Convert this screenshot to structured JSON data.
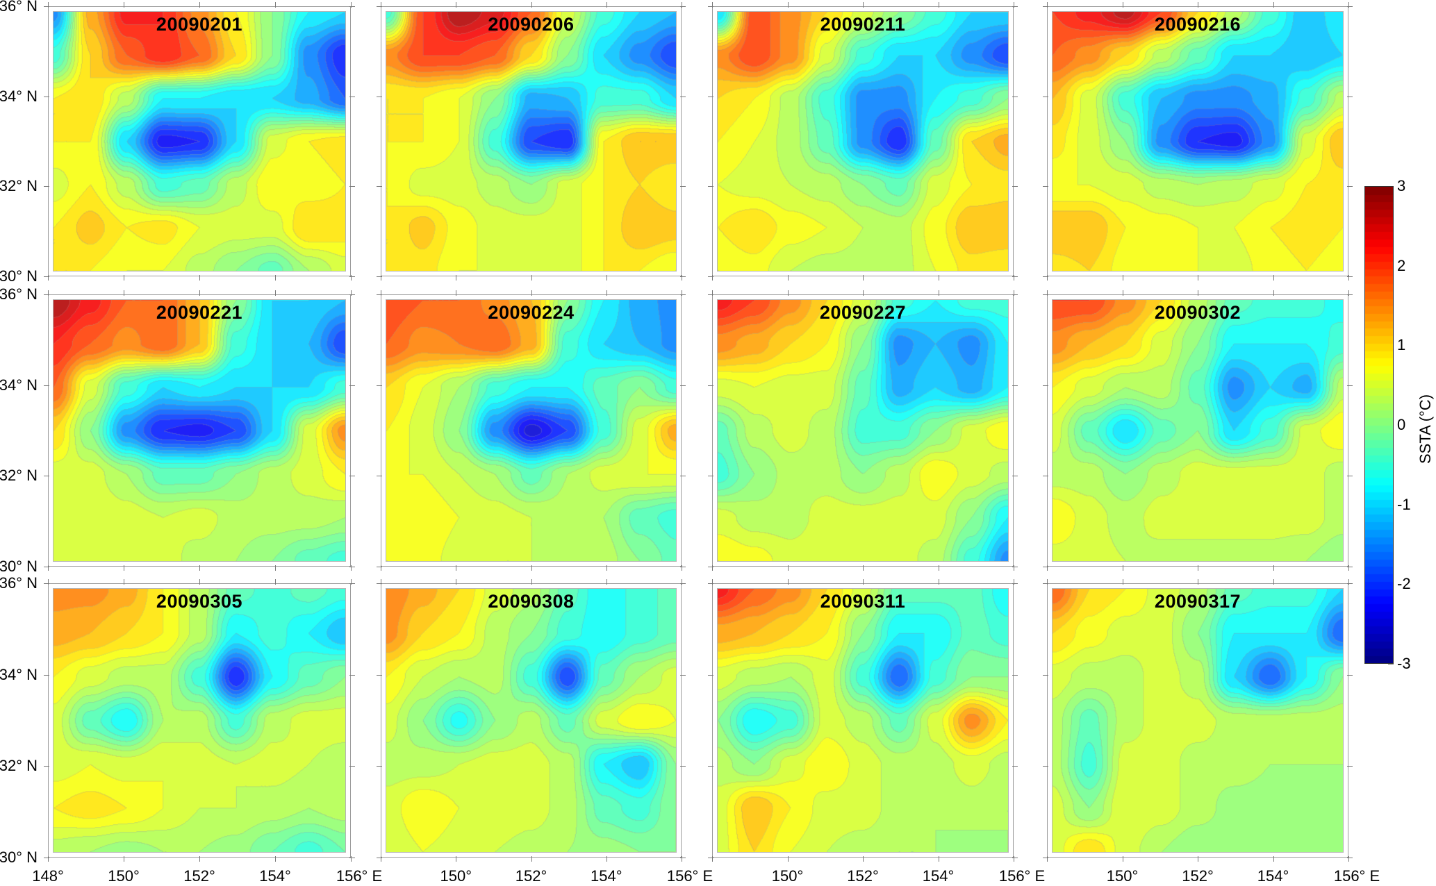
{
  "chart_data": {
    "type": "heatmap",
    "variable": "SSTA",
    "lon": [
      148,
      149,
      150,
      151,
      152,
      153,
      154,
      155,
      156
    ],
    "lat": [
      36,
      35,
      34,
      33,
      32,
      31,
      30
    ],
    "y_tick_labels": [
      "36° N",
      "34° N",
      "32° N",
      "30° N"
    ],
    "x_tick_labels_first_column": [
      "148°",
      "150°",
      "152°",
      "154°",
      "156° E"
    ],
    "x_tick_labels_other_columns": [
      "150°",
      "152°",
      "154°",
      "156° E"
    ],
    "colorbar": {
      "label": "SSTA (°C)",
      "range": [
        -3,
        3
      ],
      "ticks": [
        "3",
        "2",
        "1",
        "0",
        "-1",
        "-2",
        "-3"
      ],
      "colormap": "jet"
    },
    "panels": [
      {
        "title": "20090201",
        "values": [
          [
            -1.5,
            1.3,
            2.3,
            2.2,
            1.5,
            0.8,
            0,
            -0.8,
            -1
          ],
          [
            -0.5,
            1.0,
            1.8,
            2.2,
            1.8,
            1.0,
            0,
            -1.5,
            -2.2
          ],
          [
            0.8,
            1.0,
            0.3,
            -0.8,
            -0.8,
            -1,
            -1,
            -1.3,
            -1.8
          ],
          [
            0.8,
            0.8,
            -1,
            -2.3,
            -2.2,
            -1,
            0.5,
            0.8,
            0.9
          ],
          [
            0.5,
            0.8,
            0.3,
            -0.5,
            -0.3,
            0.3,
            0.8,
            0.7,
            0.8
          ],
          [
            0.8,
            1.1,
            0.8,
            0.9,
            0.6,
            0.5,
            0.5,
            1.0,
            0.9
          ],
          [
            0.8,
            0.8,
            0.6,
            0.6,
            0.3,
            0.0,
            -0.3,
            0.2,
            0.5
          ]
        ]
      },
      {
        "title": "20090206",
        "values": [
          [
            -0.5,
            2.0,
            2.8,
            2.5,
            1.8,
            0.5,
            -0.5,
            -1,
            -1.2
          ],
          [
            1.5,
            2.0,
            2.0,
            1.8,
            1.0,
            0,
            -1,
            -1.5,
            -2
          ],
          [
            0.8,
            0.8,
            0.6,
            0,
            -1.3,
            -1.2,
            -0.5,
            -0.5,
            -1
          ],
          [
            0.8,
            0.8,
            0.6,
            -0.5,
            -2.0,
            -2.2,
            0.8,
            1.2,
            1.2
          ],
          [
            0.8,
            0.5,
            0.5,
            0.3,
            0,
            0.5,
            0.8,
            1.0,
            0.8
          ],
          [
            0.8,
            1.1,
            0.7,
            0.5,
            0.5,
            0.5,
            0.8,
            1.2,
            1.1
          ],
          [
            0.8,
            0.9,
            0.6,
            0.6,
            0.5,
            0.5,
            0.8,
            0.8,
            0.6
          ]
        ]
      },
      {
        "title": "20090211",
        "values": [
          [
            -1,
            2.0,
            1.5,
            1.0,
            0.5,
            0,
            -0.5,
            -1,
            -1
          ],
          [
            1.5,
            2.0,
            1.5,
            0.5,
            -0.5,
            -1,
            -1,
            -1.5,
            -2
          ],
          [
            1.0,
            0.8,
            0.3,
            -0.5,
            -1.5,
            -1.5,
            -0.8,
            -0.5,
            0
          ],
          [
            0.8,
            0.6,
            0.3,
            -0.3,
            -1.5,
            -2.2,
            -0.3,
            1.0,
            1.3
          ],
          [
            0.6,
            0.5,
            0.4,
            0.3,
            0,
            -0.3,
            0.5,
            0.8,
            0.9
          ],
          [
            0.8,
            1.0,
            0.7,
            0.6,
            0.4,
            0.3,
            0.7,
            1.2,
            1.2
          ],
          [
            0.6,
            0.7,
            0.4,
            0.3,
            0.3,
            0.3,
            0.6,
            0.9,
            0.8
          ]
        ]
      },
      {
        "title": "20090216",
        "values": [
          [
            2.0,
            2.3,
            2.7,
            2.0,
            1.0,
            0.3,
            -0.5,
            -1.2,
            -0.8
          ],
          [
            1.8,
            1.5,
            1.0,
            0.3,
            -0.3,
            -1,
            -1,
            -1.2,
            -1.0
          ],
          [
            1.2,
            0.5,
            -0.5,
            -1.2,
            -1.5,
            -1.5,
            -1.3,
            -0.5,
            0.3
          ],
          [
            0.9,
            0.5,
            0,
            -1.5,
            -2.2,
            -2.3,
            -1.5,
            0.5,
            1.2
          ],
          [
            0.6,
            0.6,
            0.5,
            0.3,
            0.2,
            0.3,
            0.5,
            0.8,
            0.9
          ],
          [
            1.2,
            1.2,
            0.8,
            0.7,
            0.6,
            0.6,
            0.8,
            0.9,
            0.8
          ],
          [
            0.9,
            1.0,
            0.7,
            0.8,
            0.6,
            0.5,
            0.7,
            0.8,
            0.7
          ]
        ]
      },
      {
        "title": "20090221",
        "values": [
          [
            2.8,
            2.3,
            1.8,
            1.8,
            1.2,
            0,
            -1,
            -1,
            -1.2
          ],
          [
            2.2,
            1.8,
            1.5,
            1.8,
            1.2,
            -0.5,
            -1,
            -1.2,
            -2
          ],
          [
            1.8,
            0.5,
            -0.5,
            -1,
            -0.8,
            -1,
            -1,
            -1,
            -0.5
          ],
          [
            1.0,
            0,
            -1.5,
            -2.2,
            -2.3,
            -2.0,
            -1.0,
            0.5,
            1.5
          ],
          [
            0.5,
            0.5,
            0.2,
            -0.3,
            -0.3,
            0,
            0.3,
            0.5,
            0.8
          ],
          [
            0.5,
            0.6,
            0.5,
            0.4,
            0.5,
            0.3,
            0.3,
            0.3,
            0.2
          ],
          [
            0.5,
            0.6,
            0.5,
            0.5,
            0.3,
            0.2,
            0,
            -0.3,
            -0.5
          ]
        ]
      },
      {
        "title": "20090224",
        "values": [
          [
            2.0,
            1.8,
            1.8,
            1.5,
            1.2,
            0,
            -0.8,
            -1.3,
            -1.5
          ],
          [
            1.8,
            1.5,
            1.6,
            1.8,
            1.3,
            -0.5,
            -1,
            -1.2,
            -1.5
          ],
          [
            1.0,
            0.6,
            0.2,
            -0.5,
            -0.8,
            -0.8,
            -0.3,
            0,
            -0.5
          ],
          [
            0.8,
            0.5,
            0,
            -1.5,
            -2.5,
            -2.0,
            -0.5,
            0.5,
            1.3
          ],
          [
            0.6,
            0.6,
            0.4,
            0.2,
            -0.3,
            0.2,
            0.5,
            0.6,
            0.6
          ],
          [
            0.8,
            0.8,
            0.6,
            0.5,
            0.4,
            0.3,
            0.2,
            -0.3,
            -0.5
          ],
          [
            0.6,
            0.7,
            0.5,
            0.4,
            0.4,
            0.3,
            0.3,
            0,
            -0.3
          ]
        ]
      },
      {
        "title": "20090227",
        "values": [
          [
            2.3,
            2.0,
            1.5,
            1.0,
            0.5,
            -0.5,
            -0.8,
            -0.5,
            -0.5
          ],
          [
            1.5,
            1.3,
            1.0,
            0.8,
            0,
            -1.5,
            -1.2,
            -1.5,
            -0.8
          ],
          [
            0.5,
            0.6,
            0.5,
            0.5,
            -0.3,
            -1.3,
            -1.0,
            -1.3,
            -0.8
          ],
          [
            -0.3,
            0.3,
            0.5,
            0.3,
            -0.5,
            -0.5,
            0,
            0.5,
            0.8
          ],
          [
            -0.5,
            0,
            0.3,
            0.3,
            0,
            0.3,
            0.8,
            0.5,
            0.3
          ],
          [
            0.5,
            0.3,
            0.3,
            0.5,
            0.5,
            0.5,
            0.5,
            0,
            -0.8
          ],
          [
            0.8,
            0.7,
            0.5,
            0.6,
            0.5,
            0.5,
            0.3,
            -0.5,
            -1.5
          ]
        ]
      },
      {
        "title": "20090302",
        "values": [
          [
            2.0,
            2.0,
            1.5,
            1.0,
            0.3,
            -0.3,
            -0.5,
            -0.5,
            -0.7
          ],
          [
            1.5,
            1.2,
            1.0,
            0.5,
            0,
            -0.8,
            -0.8,
            -0.8,
            -0.5
          ],
          [
            0.8,
            0.5,
            0.2,
            0.3,
            -0.3,
            -1.5,
            -1.0,
            -1.3,
            0.3
          ],
          [
            0.5,
            -0.3,
            -1.0,
            -0.3,
            0,
            -1,
            -0.5,
            0.5,
            0.8
          ],
          [
            0.3,
            0.3,
            0,
            0.3,
            0.5,
            0.5,
            0.5,
            0.5,
            0.3
          ],
          [
            0.8,
            0.5,
            0.3,
            0.5,
            0.5,
            0.5,
            0.5,
            0.5,
            0.3
          ],
          [
            0.5,
            0.5,
            0.4,
            0.3,
            0.3,
            0.3,
            0.3,
            0.2,
            0
          ]
        ]
      },
      {
        "title": "20090305",
        "values": [
          [
            1.5,
            1.5,
            1.3,
            0.8,
            0.3,
            -0.3,
            -0.5,
            -0.3,
            -0.5
          ],
          [
            1.3,
            1.2,
            1.0,
            0.8,
            0.3,
            -0.8,
            -0.5,
            -0.8,
            -1.2
          ],
          [
            0.8,
            0.5,
            0.3,
            0.3,
            -0.5,
            -2.2,
            -0.8,
            -0.3,
            0
          ],
          [
            0.5,
            -0.3,
            -0.8,
            0.2,
            0.3,
            -0.5,
            0.3,
            0.5,
            0.5
          ],
          [
            0.5,
            0.6,
            0.5,
            0.6,
            0.5,
            0.4,
            0.5,
            0.4,
            0.3
          ],
          [
            0.8,
            0.9,
            0.8,
            0.6,
            0.4,
            0.4,
            0.3,
            0.2,
            0.3
          ],
          [
            0.3,
            0.2,
            0.1,
            0.2,
            0.2,
            0.1,
            -0.2,
            -0.5,
            -0.2
          ]
        ]
      },
      {
        "title": "20090308",
        "values": [
          [
            1.6,
            1.3,
            1.0,
            0.5,
            0.3,
            -0.3,
            -0.8,
            -0.5,
            -0.3
          ],
          [
            1.5,
            1.0,
            0.8,
            0.3,
            0,
            -0.5,
            -0.8,
            -0.5,
            -0.3
          ],
          [
            0.8,
            0.4,
            0.2,
            0.3,
            -0.5,
            -2.0,
            -0.3,
            0.2,
            0.5
          ],
          [
            0.5,
            0,
            -0.7,
            0,
            0.3,
            -0.3,
            0.5,
            0.8,
            0.6
          ],
          [
            0.3,
            0.3,
            0.4,
            0.5,
            0.5,
            0.3,
            -0.8,
            -1.2,
            0
          ],
          [
            0.5,
            0.8,
            0.6,
            0.6,
            0.5,
            0.3,
            -0.3,
            -0.5,
            0
          ],
          [
            0.4,
            0.6,
            0.5,
            0.4,
            0.3,
            0.2,
            0.1,
            0,
            0
          ]
        ]
      },
      {
        "title": "20090311",
        "values": [
          [
            2.3,
            1.8,
            1.5,
            1.0,
            0.5,
            -0.3,
            -0.3,
            -0.3,
            -0.8
          ],
          [
            1.3,
            1.2,
            1.0,
            0.8,
            0,
            -0.8,
            -0.8,
            -0.3,
            -0.5
          ],
          [
            0.5,
            0.3,
            0.2,
            0.5,
            -0.5,
            -1.8,
            -0.5,
            0,
            0
          ],
          [
            0,
            -0.8,
            -0.5,
            0.5,
            0.3,
            -0.3,
            0.5,
            1.5,
            0.8
          ],
          [
            0.3,
            0,
            0.5,
            0.8,
            0.5,
            0.3,
            0.3,
            0.5,
            0.3
          ],
          [
            0.5,
            1.2,
            0.8,
            0.5,
            0.5,
            0.3,
            0.2,
            0.3,
            0.2
          ],
          [
            0.5,
            1.0,
            0.6,
            0.4,
            0.3,
            0.2,
            0.2,
            0.1,
            0.2
          ]
        ]
      },
      {
        "title": "20090317",
        "values": [
          [
            1.8,
            1.0,
            0.8,
            0.5,
            0.3,
            -0.3,
            -0.5,
            -0.5,
            -1.0
          ],
          [
            1.0,
            0.7,
            0.5,
            0.5,
            0,
            -0.8,
            -0.8,
            -0.8,
            -1.8
          ],
          [
            0.5,
            0.3,
            0.3,
            0.5,
            0.3,
            -1.0,
            -1.8,
            -0.8,
            0
          ],
          [
            0.3,
            -0.3,
            0.3,
            0.5,
            0.5,
            0.3,
            0.3,
            0.3,
            0.3
          ],
          [
            0.3,
            -0.5,
            0.5,
            0.5,
            0.3,
            0.3,
            0.2,
            0.2,
            0.2
          ],
          [
            0.5,
            0,
            0.6,
            0.5,
            0.3,
            0.1,
            0.1,
            0.1,
            0.1
          ],
          [
            0.5,
            1.0,
            0.5,
            0.2,
            0.0,
            0.0,
            0.0,
            0.1,
            0.1
          ]
        ]
      }
    ]
  }
}
